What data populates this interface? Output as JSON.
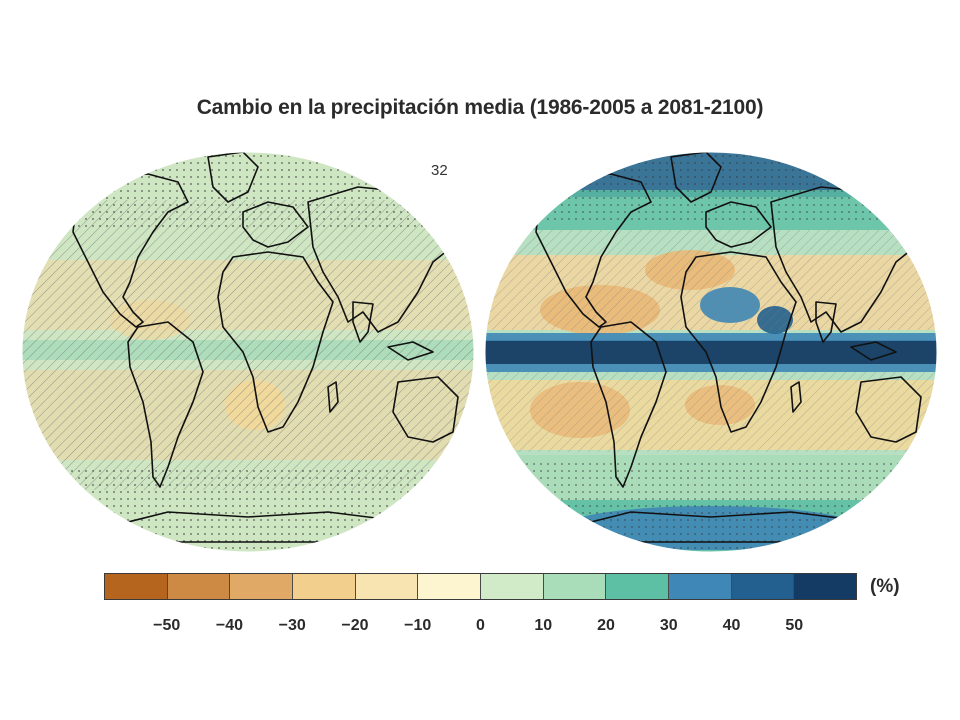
{
  "title": "Cambio en la precipitación media (1986-2005 a 2081-2100)",
  "model_count": "32",
  "unit_label": "(%)",
  "colorbar": {
    "colors": [
      "#b5651d",
      "#cc8a44",
      "#e0aa66",
      "#f3cf8e",
      "#f8e4b0",
      "#fdf5cf",
      "#d1ebc9",
      "#a9dcb9",
      "#5dbfa4",
      "#3f87b6",
      "#24608f",
      "#133b63"
    ],
    "ticks": [
      "−50",
      "−40",
      "−30",
      "−20",
      "−10",
      "0",
      "10",
      "20",
      "30",
      "40",
      "50"
    ]
  },
  "maps": [
    {
      "name": "left-map"
    },
    {
      "name": "right-map"
    }
  ]
}
